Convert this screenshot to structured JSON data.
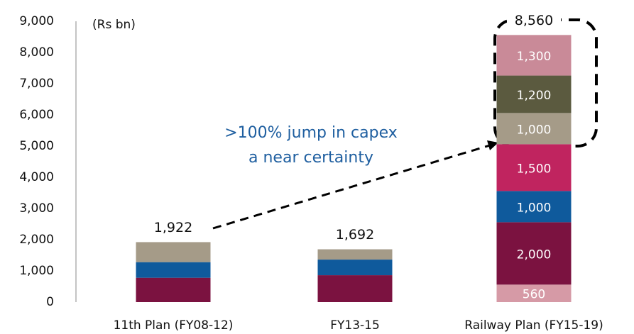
{
  "chart_data": {
    "type": "stacked_bar",
    "categories": [
      "11th Plan (FY08-12)",
      "FY13-15",
      "Railway Plan (FY15-19)"
    ],
    "series": [
      {
        "color": "#d69aa6",
        "values": [
          null,
          null,
          560
        ],
        "value_labels": [
          null,
          null,
          "560"
        ]
      },
      {
        "color": "#7b1240",
        "values": [
          780,
          862,
          2000
        ],
        "value_labels": [
          null,
          null,
          "2,000"
        ]
      },
      {
        "color": "#0f5a9c",
        "values": [
          500,
          500,
          1000
        ],
        "value_labels": [
          null,
          null,
          "1,000"
        ]
      },
      {
        "color": "#c0245f",
        "values": [
          null,
          null,
          1500
        ],
        "value_labels": [
          null,
          null,
          "1,500"
        ]
      },
      {
        "color": "#a59b88",
        "values": [
          642,
          330,
          1000
        ],
        "value_labels": [
          null,
          null,
          "1,000"
        ]
      },
      {
        "color": "#5b5a3f",
        "values": [
          null,
          null,
          1200
        ],
        "value_labels": [
          null,
          null,
          "1,200"
        ]
      },
      {
        "color": "#c98a98",
        "values": [
          null,
          null,
          1300
        ],
        "value_labels": [
          null,
          null,
          "1,300"
        ]
      }
    ],
    "totals": [
      1922,
      1692,
      8560
    ],
    "total_labels": [
      "1,922",
      "1,692",
      "8,560"
    ],
    "ylim": [
      0,
      9000
    ],
    "yticks": [
      0,
      {
        "value": 1000,
        "label": "1,000"
      },
      {
        "value": 2000,
        "label": "2,000"
      },
      {
        "value": 3000,
        "label": "3,000"
      },
      {
        "value": 4000,
        "label": "4,000"
      },
      {
        "value": 5000,
        "label": "5,000"
      },
      {
        "value": 6000,
        "label": "6,000"
      },
      {
        "value": 7000,
        "label": "7,000"
      },
      {
        "value": 8000,
        "label": "8,000"
      },
      {
        "value": 9000,
        "label": "9,000"
      }
    ],
    "unit_label": "(Rs bn)",
    "annotation": [
      ">100% jump in capex",
      "a near certainty"
    ]
  }
}
